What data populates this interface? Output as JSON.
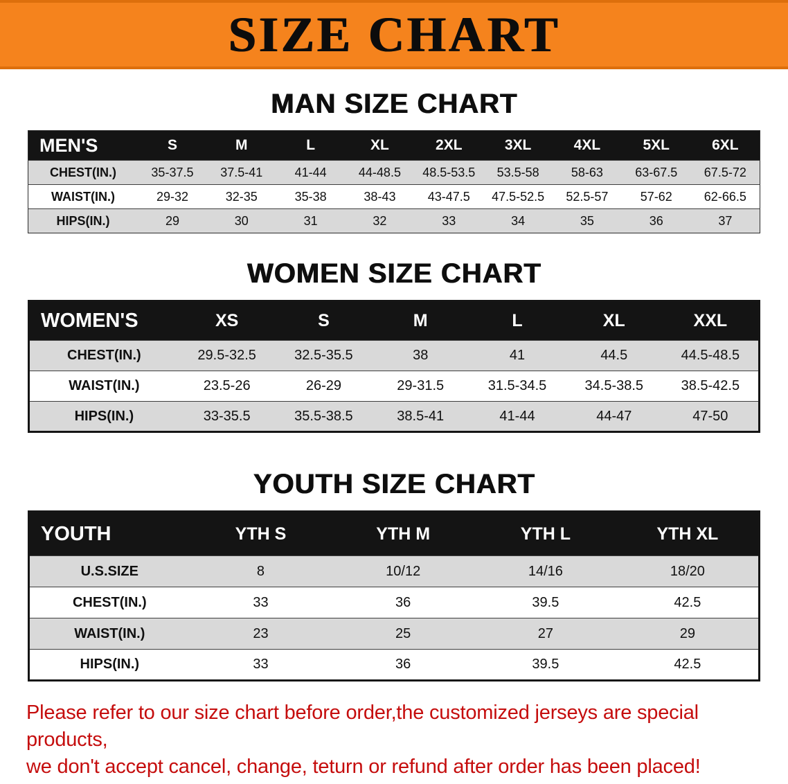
{
  "banner": {
    "title": "SIZE CHART"
  },
  "colors": {
    "banner-orange": "#F5831D",
    "banner-border": "#DD6F0C",
    "header-black": "#141414",
    "row-gray": "#D9D9D9",
    "row-white": "#FFFFFF",
    "disclaimer-red": "#C50D0D",
    "text-black": "#101010"
  },
  "sections": {
    "men": {
      "heading": "MAN SIZE CHART",
      "table": {
        "header": [
          "MEN'S",
          "S",
          "M",
          "L",
          "XL",
          "2XL",
          "3XL",
          "4XL",
          "5XL",
          "6XL"
        ],
        "rows": [
          [
            "CHEST(IN.)",
            "35-37.5",
            "37.5-41",
            "41-44",
            "44-48.5",
            "48.5-53.5",
            "53.5-58",
            "58-63",
            "63-67.5",
            "67.5-72"
          ],
          [
            "WAIST(IN.)",
            "29-32",
            "32-35",
            "35-38",
            "38-43",
            "43-47.5",
            "47.5-52.5",
            "52.5-57",
            "57-62",
            "62-66.5"
          ],
          [
            "HIPS(IN.)",
            "29",
            "30",
            "31",
            "32",
            "33",
            "34",
            "35",
            "36",
            "37"
          ]
        ]
      }
    },
    "women": {
      "heading": "WOMEN SIZE CHART",
      "table": {
        "header": [
          "WOMEN'S",
          "XS",
          "S",
          "M",
          "L",
          "XL",
          "XXL"
        ],
        "rows": [
          [
            "CHEST(IN.)",
            "29.5-32.5",
            "32.5-35.5",
            "38",
            "41",
            "44.5",
            "44.5-48.5"
          ],
          [
            "WAIST(IN.)",
            "23.5-26",
            "26-29",
            "29-31.5",
            "31.5-34.5",
            "34.5-38.5",
            "38.5-42.5"
          ],
          [
            "HIPS(IN.)",
            "33-35.5",
            "35.5-38.5",
            "38.5-41",
            "41-44",
            "44-47",
            "47-50"
          ]
        ]
      }
    },
    "youth": {
      "heading": "YOUTH SIZE CHART",
      "table": {
        "header": [
          "YOUTH",
          "YTH S",
          "YTH M",
          "YTH L",
          "YTH XL"
        ],
        "rows": [
          [
            "U.S.SIZE",
            "8",
            "10/12",
            "14/16",
            "18/20"
          ],
          [
            "CHEST(IN.)",
            "33",
            "36",
            "39.5",
            "42.5"
          ],
          [
            "WAIST(IN.)",
            "23",
            "25",
            "27",
            "29"
          ],
          [
            "HIPS(IN.)",
            "33",
            "36",
            "39.5",
            "42.5"
          ]
        ]
      }
    }
  },
  "footer": {
    "lines": [
      "Please refer to our size chart before order,the customized jerseys are special products,",
      "we don't accept cancel, change, teturn or refund after order has been placed!"
    ]
  }
}
